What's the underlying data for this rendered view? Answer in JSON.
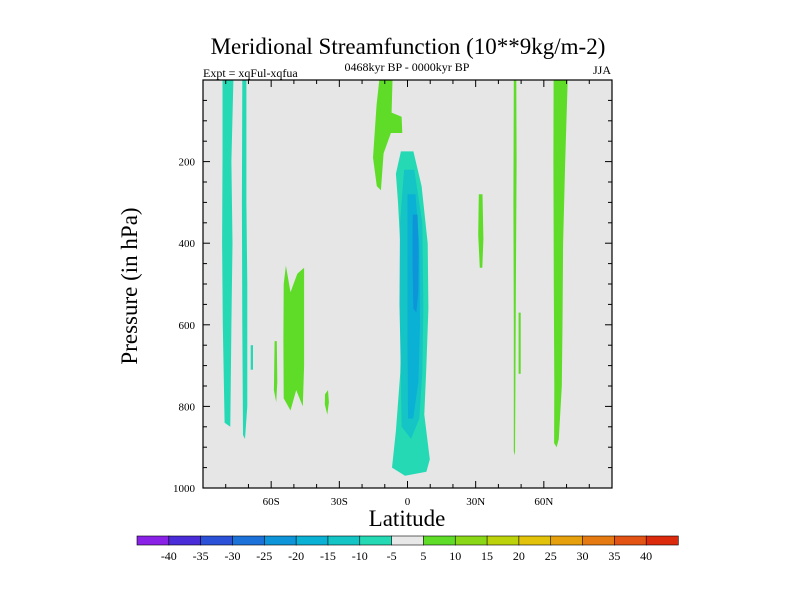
{
  "chart_data": {
    "type": "contour",
    "title": "Meridional Streamfunction (10**9kg/m-2)",
    "left_subtitle": "Expt = xqFul-xqfua",
    "center_subtitle": "0468kyr BP - 0000kyr BP",
    "right_subtitle": "JJA",
    "xlabel": "Latitude",
    "ylabel": "Pressure (in hPa)",
    "xlim": [
      -90,
      90
    ],
    "ylim": [
      1000,
      0
    ],
    "x_ticks": [
      {
        "value": -60,
        "label": "60S"
      },
      {
        "value": -30,
        "label": "30S"
      },
      {
        "value": 0,
        "label": "0"
      },
      {
        "value": 30,
        "label": "30N"
      },
      {
        "value": 60,
        "label": "60N"
      }
    ],
    "y_ticks": [
      {
        "value": 200,
        "label": "200"
      },
      {
        "value": 400,
        "label": "400"
      },
      {
        "value": 600,
        "label": "600"
      },
      {
        "value": 800,
        "label": "800"
      },
      {
        "value": 1000,
        "label": "1000"
      }
    ],
    "background_color": "#e6e6e6",
    "colorbar": {
      "labels": [
        "-40",
        "-35",
        "-30",
        "-25",
        "-20",
        "-15",
        "-10",
        "-5",
        "5",
        "10",
        "15",
        "20",
        "25",
        "30",
        "35",
        "40"
      ],
      "colors": [
        "#8a21e6",
        "#4a2cd8",
        "#2b51d9",
        "#1c72d8",
        "#0e94d8",
        "#0bb0d5",
        "#15c5c5",
        "#25d9b5",
        "#e8e8e8",
        "#5edc28",
        "#8ad718",
        "#bcd20a",
        "#e2c20a",
        "#e7a00d",
        "#e67a12",
        "#e35314",
        "#dc2a0d"
      ]
    },
    "regions": [
      {
        "name": "teal-band-60s-west",
        "color": "#25d9b5",
        "pts": [
          [
            -81.4,
            0
          ],
          [
            -76.6,
            0
          ],
          [
            -77.5,
            200
          ],
          [
            -77,
            400
          ],
          [
            -77.5,
            600
          ],
          [
            -78,
            850
          ],
          [
            -80.5,
            840
          ],
          [
            -81.3,
            600
          ],
          [
            -81.6,
            400
          ],
          [
            -81.4,
            200
          ]
        ]
      },
      {
        "name": "teal-thin-55s",
        "color": "#25d9b5",
        "pts": [
          [
            -72.7,
            0
          ],
          [
            -70.9,
            0
          ],
          [
            -70.9,
            300
          ],
          [
            -70.5,
            500
          ],
          [
            -70.5,
            800
          ],
          [
            -71.5,
            880
          ],
          [
            -72.4,
            870
          ],
          [
            -72.7,
            600
          ],
          [
            -72.9,
            300
          ]
        ]
      },
      {
        "name": "teal-sliver-58s",
        "color": "#25d9b5",
        "pts": [
          [
            -69,
            650
          ],
          [
            -68,
            650
          ],
          [
            -68,
            710
          ],
          [
            -69,
            710
          ]
        ]
      },
      {
        "name": "green-blob-45s",
        "color": "#5edc28",
        "pts": [
          [
            -54.5,
            500
          ],
          [
            -53.5,
            455
          ],
          [
            -51.5,
            520
          ],
          [
            -48.5,
            475
          ],
          [
            -45.5,
            460
          ],
          [
            -45.5,
            560
          ],
          [
            -45.5,
            700
          ],
          [
            -46.1,
            800
          ],
          [
            -49,
            760
          ],
          [
            -51.5,
            810
          ],
          [
            -54.5,
            780
          ],
          [
            -54.6,
            640
          ]
        ]
      },
      {
        "name": "green-sliver-50s",
        "color": "#5edc28",
        "pts": [
          [
            -58.5,
            640
          ],
          [
            -57.5,
            640
          ],
          [
            -57.3,
            740
          ],
          [
            -57.8,
            790
          ],
          [
            -58.8,
            760
          ]
        ]
      },
      {
        "name": "green-dot-28s",
        "color": "#5edc28",
        "pts": [
          [
            -36.3,
            770
          ],
          [
            -35,
            760
          ],
          [
            -34.6,
            790
          ],
          [
            -35.3,
            820
          ],
          [
            -36.4,
            795
          ]
        ]
      },
      {
        "name": "green-arm-top",
        "color": "#5edc28",
        "pts": [
          [
            -12.4,
            0
          ],
          [
            -6.6,
            0
          ],
          [
            -7,
            80
          ],
          [
            -2.6,
            90
          ],
          [
            -2.3,
            130
          ],
          [
            -7.3,
            130
          ],
          [
            -10.5,
            180
          ],
          [
            -11.7,
            270
          ],
          [
            -13.5,
            260
          ],
          [
            -15.2,
            190
          ],
          [
            -13.6,
            60
          ]
        ]
      },
      {
        "name": "teal-core-outer",
        "color": "#25d9b5",
        "pts": [
          [
            -2.9,
            175
          ],
          [
            2.6,
            175
          ],
          [
            6.2,
            260
          ],
          [
            8.9,
            400
          ],
          [
            9.2,
            560
          ],
          [
            8.3,
            700
          ],
          [
            7.4,
            820
          ],
          [
            9.8,
            930
          ],
          [
            8.3,
            960
          ],
          [
            -1.1,
            970
          ],
          [
            -6.8,
            950
          ],
          [
            -5.1,
            860
          ],
          [
            -3.2,
            720
          ],
          [
            -2.3,
            560
          ],
          [
            -3.2,
            400
          ],
          [
            -4.2,
            300
          ],
          [
            -5.1,
            230
          ]
        ]
      },
      {
        "name": "cyan-core",
        "color": "#15c5c5",
        "pts": [
          [
            -1.5,
            220
          ],
          [
            3,
            220
          ],
          [
            6.5,
            350
          ],
          [
            7,
            560
          ],
          [
            6.5,
            720
          ],
          [
            5.2,
            830
          ],
          [
            1.6,
            880
          ],
          [
            -2.6,
            850
          ],
          [
            -3,
            700
          ],
          [
            -3.5,
            550
          ],
          [
            -3.3,
            350
          ]
        ]
      },
      {
        "name": "blue-core-mid",
        "color": "#0bb0d5",
        "pts": [
          [
            0,
            280
          ],
          [
            3.5,
            280
          ],
          [
            5.2,
            400
          ],
          [
            5.5,
            600
          ],
          [
            4.8,
            740
          ],
          [
            2.5,
            830
          ],
          [
            0.2,
            830
          ],
          [
            0,
            650
          ],
          [
            0,
            450
          ]
        ]
      },
      {
        "name": "blue-core-inner",
        "color": "#0e94d8",
        "pts": [
          [
            2.3,
            330
          ],
          [
            4.4,
            330
          ],
          [
            4.9,
            420
          ],
          [
            4.7,
            520
          ],
          [
            3.9,
            570
          ],
          [
            2.6,
            560
          ],
          [
            2.2,
            450
          ]
        ]
      },
      {
        "name": "green-30n",
        "color": "#5edc28",
        "pts": [
          [
            31.4,
            280
          ],
          [
            33,
            280
          ],
          [
            33.4,
            390
          ],
          [
            32.9,
            460
          ],
          [
            31.8,
            460
          ],
          [
            31.1,
            380
          ]
        ]
      },
      {
        "name": "green-thin-45n",
        "color": "#5edc28",
        "pts": [
          [
            46.8,
            0
          ],
          [
            47.9,
            0
          ],
          [
            48,
            200
          ],
          [
            47.7,
            500
          ],
          [
            47.5,
            750
          ],
          [
            47.3,
            920
          ],
          [
            46.8,
            910
          ],
          [
            46.8,
            600
          ],
          [
            46.6,
            300
          ]
        ]
      },
      {
        "name": "green-sliver-47n",
        "color": "#5edc28",
        "pts": [
          [
            48.9,
            570
          ],
          [
            49.8,
            570
          ],
          [
            49.8,
            720
          ],
          [
            48.9,
            720
          ]
        ]
      },
      {
        "name": "green-60n",
        "color": "#5edc28",
        "pts": [
          [
            64.3,
            0
          ],
          [
            70.5,
            0
          ],
          [
            69.4,
            200
          ],
          [
            68.5,
            400
          ],
          [
            68.2,
            600
          ],
          [
            67.9,
            750
          ],
          [
            66.6,
            880
          ],
          [
            65.6,
            900
          ],
          [
            64.5,
            890
          ],
          [
            64.6,
            750
          ],
          [
            64.4,
            500
          ],
          [
            64.2,
            200
          ]
        ]
      }
    ]
  }
}
